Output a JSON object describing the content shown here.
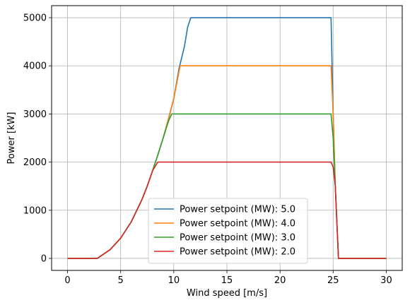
{
  "chart_data": {
    "type": "line",
    "title": "",
    "xlabel": "Wind speed [m/s]",
    "ylabel": "Power [kW]",
    "xlim": [
      -1.5,
      31.5
    ],
    "ylim": [
      -250,
      5250
    ],
    "xticks": [
      0,
      5,
      10,
      15,
      20,
      25,
      30
    ],
    "yticks": [
      0,
      1000,
      2000,
      3000,
      4000,
      5000
    ],
    "grid": true,
    "legend_position": "lower-center",
    "series": [
      {
        "name": "Power setpoint (MW): 5.0",
        "color": "#1f77b4",
        "points": [
          [
            0,
            0
          ],
          [
            2,
            0
          ],
          [
            2.8,
            0
          ],
          [
            4,
            180
          ],
          [
            5,
            420
          ],
          [
            6,
            760
          ],
          [
            7,
            1220
          ],
          [
            7.5,
            1500
          ],
          [
            8,
            1820
          ],
          [
            8.5,
            2150
          ],
          [
            9,
            2500
          ],
          [
            9.5,
            2900
          ],
          [
            10,
            3320
          ],
          [
            10.5,
            3950
          ],
          [
            11,
            4400
          ],
          [
            11.3,
            4800
          ],
          [
            11.6,
            5000
          ],
          [
            24.8,
            5000
          ],
          [
            25,
            3000
          ],
          [
            25.2,
            1500
          ],
          [
            25.5,
            0
          ],
          [
            30,
            0
          ]
        ]
      },
      {
        "name": "Power setpoint (MW): 4.0",
        "color": "#ff7f0e",
        "points": [
          [
            0,
            0
          ],
          [
            2,
            0
          ],
          [
            2.8,
            0
          ],
          [
            4,
            180
          ],
          [
            5,
            420
          ],
          [
            6,
            760
          ],
          [
            7,
            1220
          ],
          [
            7.5,
            1500
          ],
          [
            8,
            1820
          ],
          [
            8.5,
            2150
          ],
          [
            9,
            2500
          ],
          [
            9.5,
            2900
          ],
          [
            10,
            3320
          ],
          [
            10.6,
            4000
          ],
          [
            24.8,
            4000
          ],
          [
            25,
            3000
          ],
          [
            25.2,
            1500
          ],
          [
            25.5,
            0
          ],
          [
            30,
            0
          ]
        ]
      },
      {
        "name": "Power setpoint (MW): 3.0",
        "color": "#2ca02c",
        "points": [
          [
            0,
            0
          ],
          [
            2,
            0
          ],
          [
            2.8,
            0
          ],
          [
            4,
            180
          ],
          [
            5,
            420
          ],
          [
            6,
            760
          ],
          [
            7,
            1220
          ],
          [
            7.5,
            1500
          ],
          [
            8,
            1820
          ],
          [
            8.5,
            2150
          ],
          [
            9,
            2500
          ],
          [
            9.5,
            2850
          ],
          [
            9.8,
            3000
          ],
          [
            24.8,
            3000
          ],
          [
            25,
            2500
          ],
          [
            25.2,
            1500
          ],
          [
            25.5,
            0
          ],
          [
            30,
            0
          ]
        ]
      },
      {
        "name": "Power setpoint (MW): 2.0",
        "color": "#d62728",
        "points": [
          [
            0,
            0
          ],
          [
            2,
            0
          ],
          [
            2.8,
            0
          ],
          [
            4,
            180
          ],
          [
            5,
            420
          ],
          [
            6,
            760
          ],
          [
            7,
            1220
          ],
          [
            7.5,
            1500
          ],
          [
            8,
            1820
          ],
          [
            8.5,
            2000
          ],
          [
            24.8,
            2000
          ],
          [
            25,
            1900
          ],
          [
            25.2,
            1500
          ],
          [
            25.5,
            0
          ],
          [
            30,
            0
          ]
        ]
      }
    ]
  }
}
